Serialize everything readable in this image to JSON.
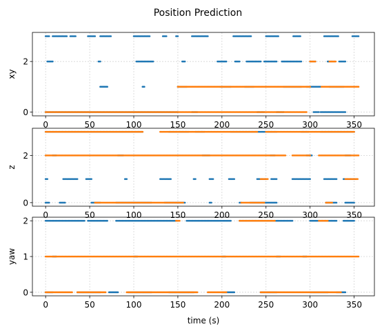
{
  "chart_data": {
    "type": "scatter",
    "title": "Position Prediction",
    "colors": {
      "series_a": "#1f77b4",
      "series_b": "#ff7f0e"
    },
    "grid": true,
    "xlim": [
      -15,
      373
    ],
    "xticks": [
      "0",
      "50",
      "100",
      "150",
      "200",
      "250",
      "300",
      "350"
    ],
    "xtick_values": [
      0,
      50,
      100,
      150,
      200,
      250,
      300,
      350
    ],
    "xlabel": "time (s)",
    "subplots": [
      {
        "ylabel": "xy",
        "ylim": [
          -0.15,
          3.15
        ],
        "yticks": [
          "0",
          "2"
        ],
        "ytick_values": [
          0,
          2
        ],
        "series_a_segments": [
          [
            3,
            0,
            4
          ],
          [
            3,
            8,
            24
          ],
          [
            3,
            28,
            34
          ],
          [
            3,
            48,
            56
          ],
          [
            3,
            62,
            74
          ],
          [
            3,
            100,
            118
          ],
          [
            3,
            133,
            137
          ],
          [
            3,
            148,
            150
          ],
          [
            3,
            166,
            184
          ],
          [
            3,
            213,
            233
          ],
          [
            3,
            250,
            264
          ],
          [
            3,
            281,
            289
          ],
          [
            3,
            316,
            332
          ],
          [
            3,
            348,
            355
          ],
          [
            2,
            2,
            8
          ],
          [
            2,
            60,
            62
          ],
          [
            2,
            103,
            122
          ],
          [
            2,
            155,
            158
          ],
          [
            2,
            195,
            205
          ],
          [
            2,
            215,
            220
          ],
          [
            2,
            228,
            244
          ],
          [
            2,
            248,
            262
          ],
          [
            2,
            268,
            290
          ],
          [
            2,
            300,
            306
          ],
          [
            2,
            320,
            328
          ],
          [
            2,
            333,
            340
          ],
          [
            1,
            62,
            70
          ],
          [
            1,
            110,
            112
          ],
          [
            1,
            150,
            160
          ],
          [
            1,
            198,
            210
          ],
          [
            1,
            226,
            236
          ],
          [
            1,
            270,
            290
          ],
          [
            1,
            296,
            312
          ],
          [
            1,
            322,
            338
          ],
          [
            0,
            0,
            150
          ],
          [
            0,
            166,
            172
          ],
          [
            0,
            240,
            248
          ],
          [
            0,
            262,
            270
          ],
          [
            0,
            304,
            310
          ],
          [
            0,
            312,
            340
          ]
        ],
        "series_b_segments": [
          [
            0,
            0,
            296
          ],
          [
            1,
            150,
            300
          ],
          [
            1,
            313,
            355
          ],
          [
            2,
            300,
            306
          ],
          [
            2,
            322,
            329
          ]
        ]
      },
      {
        "ylabel": "z",
        "ylim": [
          -0.15,
          3.15
        ],
        "yticks": [
          "0",
          "2"
        ],
        "ytick_values": [
          0,
          2
        ],
        "series_a_segments": [
          [
            3,
            0,
            110
          ],
          [
            3,
            140,
            162
          ],
          [
            3,
            170,
            180
          ],
          [
            3,
            210,
            262
          ],
          [
            3,
            290,
            298
          ],
          [
            3,
            312,
            350
          ],
          [
            2,
            8,
            12
          ],
          [
            2,
            82,
            88
          ],
          [
            2,
            178,
            186
          ],
          [
            2,
            255,
            260
          ],
          [
            2,
            296,
            302
          ],
          [
            2,
            340,
            346
          ],
          [
            1,
            0,
            2
          ],
          [
            1,
            20,
            36
          ],
          [
            1,
            46,
            52
          ],
          [
            1,
            90,
            92
          ],
          [
            1,
            130,
            142
          ],
          [
            1,
            168,
            170
          ],
          [
            1,
            186,
            190
          ],
          [
            1,
            208,
            214
          ],
          [
            1,
            240,
            250
          ],
          [
            1,
            256,
            262
          ],
          [
            1,
            280,
            300
          ],
          [
            1,
            316,
            330
          ],
          [
            1,
            338,
            352
          ],
          [
            0,
            0,
            4
          ],
          [
            0,
            16,
            22
          ],
          [
            0,
            52,
            62
          ],
          [
            0,
            80,
            120
          ],
          [
            0,
            135,
            158
          ],
          [
            0,
            186,
            188
          ],
          [
            0,
            220,
            222
          ],
          [
            0,
            232,
            262
          ],
          [
            0,
            318,
            330
          ],
          [
            0,
            340,
            350
          ]
        ],
        "series_b_segments": [
          [
            3,
            0,
            110
          ],
          [
            3,
            130,
            240
          ],
          [
            3,
            250,
            350
          ],
          [
            2,
            0,
            272
          ],
          [
            2,
            280,
            300
          ],
          [
            2,
            310,
            355
          ],
          [
            1,
            244,
            252
          ],
          [
            1,
            340,
            354
          ],
          [
            0,
            56,
            156
          ],
          [
            0,
            222,
            248
          ],
          [
            0,
            318,
            325
          ]
        ]
      },
      {
        "ylabel": "yaw",
        "ylim": [
          -0.1,
          2.1
        ],
        "yticks": [
          "0",
          "1",
          "2"
        ],
        "ytick_values": [
          0,
          1,
          2
        ],
        "series_a_segments": [
          [
            2,
            0,
            44
          ],
          [
            2,
            48,
            70
          ],
          [
            2,
            80,
            150
          ],
          [
            2,
            160,
            210
          ],
          [
            2,
            220,
            280
          ],
          [
            2,
            300,
            330
          ],
          [
            2,
            338,
            350
          ],
          [
            1,
            8,
            12
          ],
          [
            1,
            100,
            104
          ],
          [
            1,
            200,
            204
          ],
          [
            1,
            262,
            266
          ],
          [
            1,
            292,
            296
          ],
          [
            0,
            0,
            8
          ],
          [
            0,
            36,
            62
          ],
          [
            0,
            72,
            82
          ],
          [
            0,
            94,
            120
          ],
          [
            0,
            140,
            168
          ],
          [
            0,
            200,
            214
          ],
          [
            0,
            244,
            262
          ],
          [
            0,
            300,
            320
          ],
          [
            0,
            330,
            340
          ]
        ],
        "series_b_segments": [
          [
            2,
            148,
            152
          ],
          [
            2,
            220,
            260
          ],
          [
            2,
            310,
            320
          ],
          [
            1,
            0,
            355
          ],
          [
            0,
            0,
            30
          ],
          [
            0,
            36,
            68
          ],
          [
            0,
            92,
            172
          ],
          [
            0,
            184,
            205
          ],
          [
            0,
            244,
            335
          ]
        ]
      }
    ]
  }
}
